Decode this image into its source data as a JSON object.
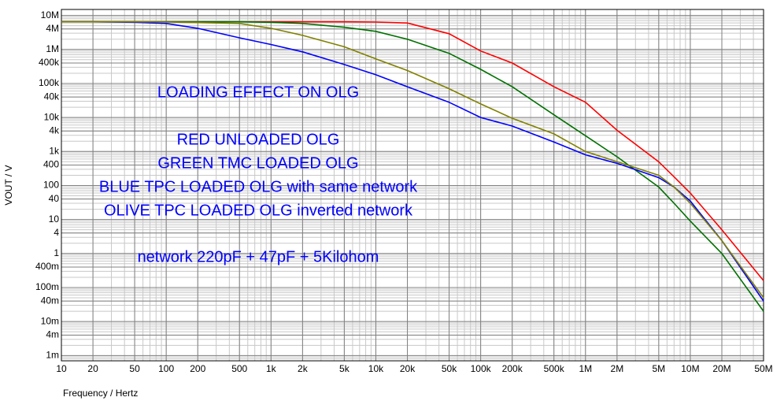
{
  "chart_data": {
    "type": "line",
    "ylabel": "VOUT / V",
    "xlabel": "Frequency / Hertz",
    "log_x": true,
    "log_y": true,
    "grid": true,
    "minor_grid": true,
    "xlim": [
      10,
      50000000
    ],
    "ylim": [
      0.0007,
      15000000
    ],
    "xticks": [
      10,
      20,
      50,
      100,
      200,
      500,
      {
        "value": 1000,
        "label": "1k"
      },
      {
        "value": 2000,
        "label": "2k"
      },
      {
        "value": 5000,
        "label": "5k"
      },
      {
        "value": 10000,
        "label": "10k"
      },
      {
        "value": 20000,
        "label": "20k"
      },
      {
        "value": 50000,
        "label": "50k"
      },
      {
        "value": 100000,
        "label": "100k"
      },
      {
        "value": 200000,
        "label": "200k"
      },
      {
        "value": 500000,
        "label": "500k"
      },
      {
        "value": 1000000,
        "label": "1M"
      },
      {
        "value": 2000000,
        "label": "2M"
      },
      {
        "value": 5000000,
        "label": "5M"
      },
      {
        "value": 10000000,
        "label": "10M"
      },
      {
        "value": 20000000,
        "label": "20M"
      },
      {
        "value": 50000000,
        "label": "50M"
      }
    ],
    "yticks": [
      {
        "value": 10000000,
        "label": "10M"
      },
      {
        "value": 4000000,
        "label": "4M"
      },
      {
        "value": 1000000,
        "label": "1M"
      },
      {
        "value": 400000,
        "label": "400k"
      },
      {
        "value": 100000,
        "label": "100k"
      },
      {
        "value": 40000,
        "label": "40k"
      },
      {
        "value": 10000,
        "label": "10k"
      },
      {
        "value": 4000,
        "label": "4k"
      },
      {
        "value": 1000,
        "label": "1k"
      },
      400,
      100,
      40,
      10,
      4,
      1,
      {
        "value": 0.4,
        "label": "400m"
      },
      {
        "value": 0.1,
        "label": "100m"
      },
      {
        "value": 0.04,
        "label": "40m"
      },
      {
        "value": 0.01,
        "label": "10m"
      },
      {
        "value": 0.004,
        "label": "4m"
      },
      {
        "value": 0.001,
        "label": "1m"
      }
    ],
    "annotations": [
      "LOADING EFFECT ON OLG",
      "RED UNLOADED OLG",
      "GREEN TMC LOADED OLG",
      "BLUE TPC LOADED OLG with same network",
      "OLIVE  TPC LOADED OLG inverted network",
      "network 220pF + 47pF + 5Kilohom"
    ],
    "annotation_color": "#0000ff",
    "x": [
      10,
      20,
      50,
      100,
      200,
      500,
      1000,
      2000,
      5000,
      10000,
      20000,
      50000,
      100000,
      200000,
      500000,
      1000000,
      2000000,
      5000000,
      7000000,
      10000000,
      20000000,
      50000000
    ],
    "series": [
      {
        "name": "RED",
        "color": "#ff0000",
        "values": [
          6500000,
          6500000,
          6500000,
          6500000,
          6500000,
          6500000,
          6500000,
          6500000,
          6500000,
          6400000,
          6000000,
          2900000,
          900000,
          400000,
          80000,
          28000,
          4200,
          500,
          180,
          60,
          5,
          0.16
        ]
      },
      {
        "name": "GREEN",
        "color": "#007000",
        "values": [
          6500000,
          6500000,
          6500000,
          6500000,
          6500000,
          6500000,
          6300000,
          5800000,
          4500000,
          3400000,
          2000000,
          770000,
          260000,
          80000,
          12000,
          2900,
          700,
          90,
          30,
          9,
          1.0,
          0.02
        ]
      },
      {
        "name": "BLUE",
        "color": "#0000ff",
        "values": [
          6500000,
          6500000,
          6300000,
          5800000,
          4200000,
          2200000,
          1400000,
          850000,
          360000,
          180000,
          80000,
          28000,
          10000,
          5600,
          1900,
          800,
          450,
          170,
          90,
          35,
          2.4,
          0.04
        ]
      },
      {
        "name": "OLIVE",
        "color": "#808000",
        "values": [
          6500000,
          6500000,
          6500000,
          6400000,
          6200000,
          5800000,
          4200000,
          2600000,
          1200000,
          530000,
          240000,
          70000,
          25000,
          9500,
          3300,
          1000,
          500,
          200,
          90,
          30,
          2.4,
          0.05
        ]
      }
    ]
  }
}
